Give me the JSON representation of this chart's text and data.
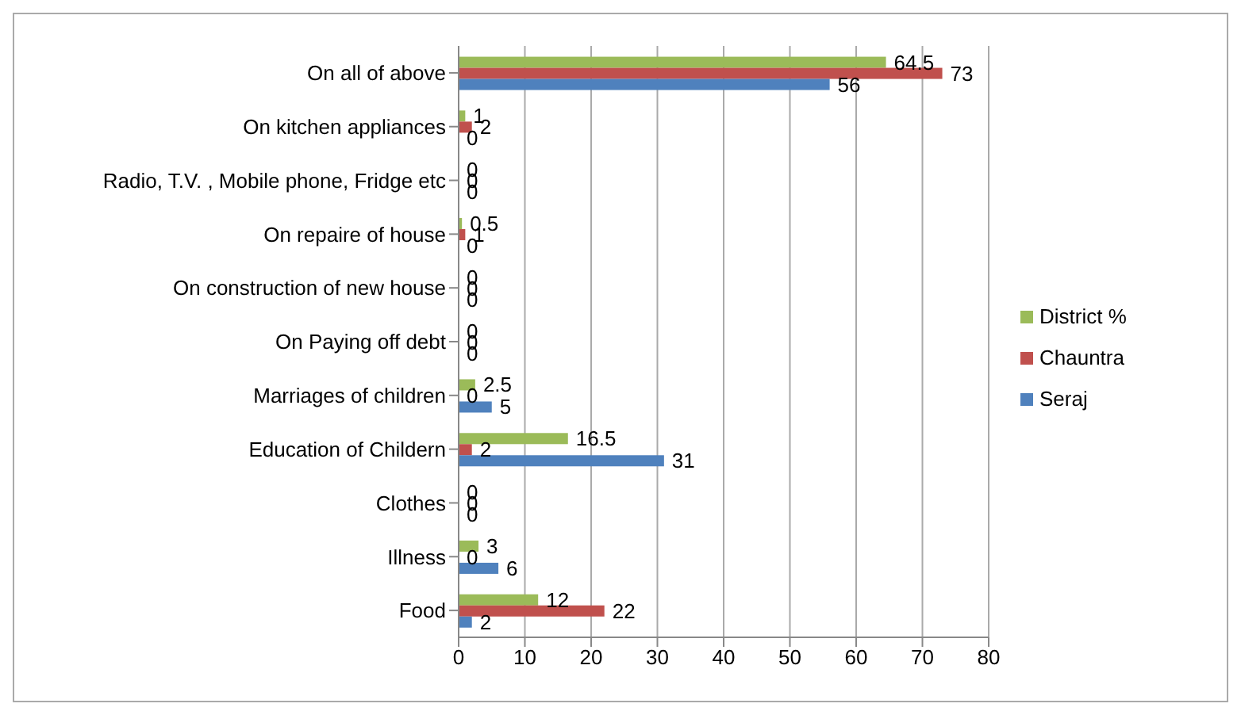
{
  "chart_data": {
    "type": "bar",
    "orientation": "horizontal",
    "categories": [
      "On all of above",
      "On kitchen appliances",
      "Radio, T.V. , Mobile phone, Fridge etc",
      "On repaire of house",
      "On construction of new house",
      "On Paying off debt",
      "Marriages of children",
      "Education of Childern",
      "Clothes",
      "Illness",
      "Food"
    ],
    "series": [
      {
        "name": "District %",
        "color": "#9bbb59",
        "values": [
          64.5,
          1,
          0,
          0.5,
          0,
          0,
          2.5,
          16.5,
          0,
          3,
          12
        ]
      },
      {
        "name": "Chauntra",
        "color": "#c0504d",
        "values": [
          73,
          2,
          0,
          1,
          0,
          0,
          0,
          2,
          0,
          0,
          22
        ]
      },
      {
        "name": "Seraj",
        "color": "#4f81bd",
        "values": [
          56,
          0,
          0,
          0,
          0,
          0,
          5,
          31,
          0,
          6,
          2
        ]
      }
    ],
    "xlim": [
      0,
      80
    ],
    "xticks": [
      0,
      10,
      20,
      30,
      40,
      50,
      60,
      70,
      80
    ],
    "grid": "x",
    "legend": "right",
    "data_labels": true
  }
}
